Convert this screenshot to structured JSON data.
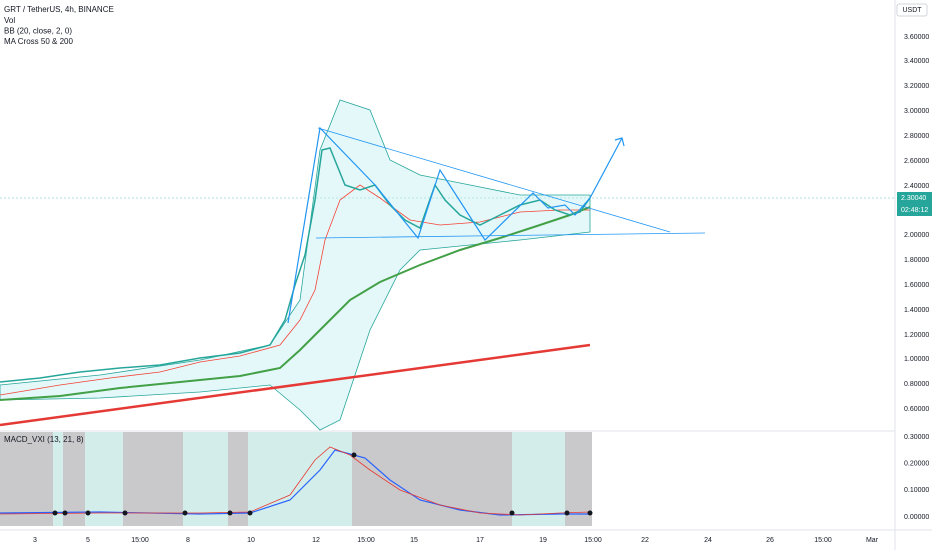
{
  "header": {
    "title": "GRT / TetherUS, 4h, BINANCE",
    "indicators": [
      "Vol",
      "BB (20, close, 2, 0)",
      "MA Cross 50 & 200"
    ]
  },
  "price_axis": {
    "unit": "USDT",
    "labels": [
      "3.60000",
      "3.40000",
      "3.20000",
      "3.00000",
      "2.80000",
      "2.60000",
      "2.40000",
      "2.00000",
      "1.80000",
      "1.60000",
      "1.40000",
      "1.20000",
      "1.00000",
      "0.80000",
      "0.60000"
    ],
    "last_price": "2.30040",
    "countdown": "02:48:12"
  },
  "macd": {
    "label": "MACD_VXI (13, 21, 8)",
    "axis_labels": [
      "0.30000",
      "0.20000",
      "0.10000",
      "0.00000"
    ]
  },
  "time_axis": {
    "labels": [
      "3",
      "5",
      "15:00",
      "8",
      "10",
      "12",
      "15:00",
      "15",
      "17",
      "19",
      "15:00",
      "22",
      "24",
      "26",
      "15:00",
      "Mar"
    ]
  }
}
